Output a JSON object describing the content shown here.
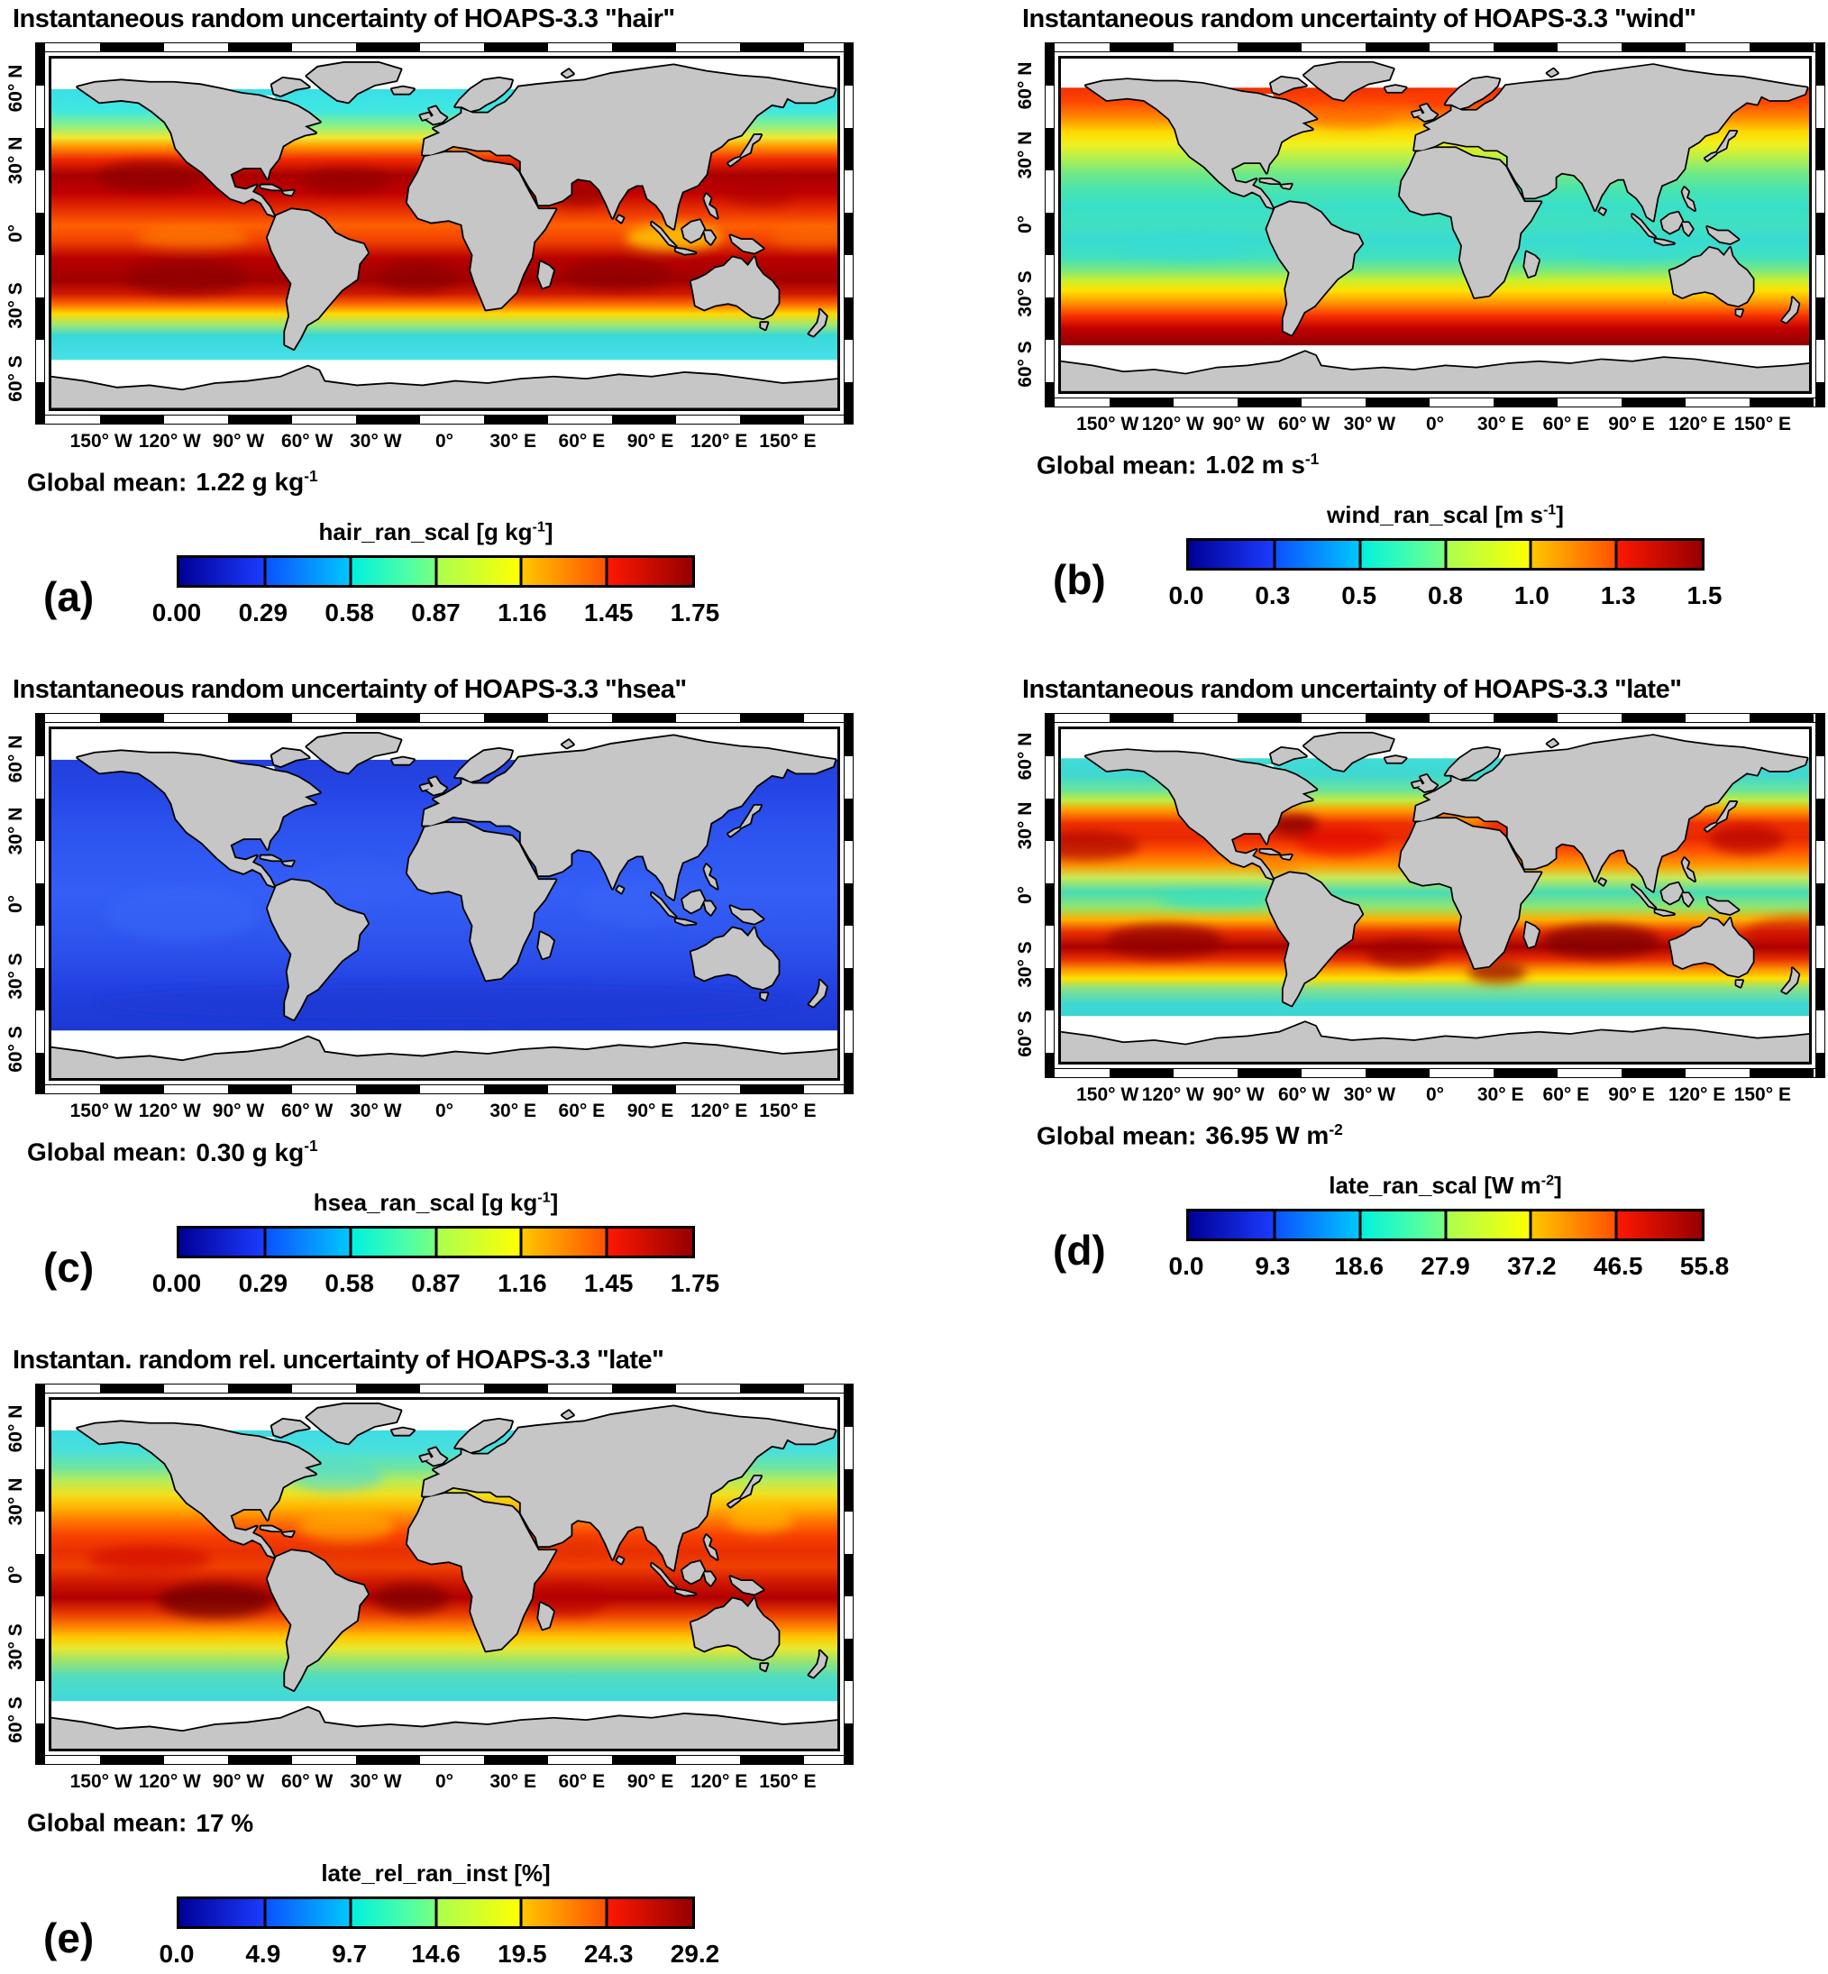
{
  "axes": {
    "lon_ticks": [
      "150° W",
      "120° W",
      "90° W",
      "60° W",
      "30° W",
      "0°",
      "30° E",
      "60° E",
      "90° E",
      "120° E",
      "150° E"
    ],
    "lat_ticks": [
      "60° N",
      "30° N",
      "0°",
      "30° S",
      "60° S"
    ]
  },
  "panels": [
    {
      "id": "a",
      "letter": "(a)",
      "title": "Instantaneous random uncertainty of HOAPS-3.3 \"hair\"",
      "global_mean": {
        "label": "Global mean:",
        "value": "1.22 g kg",
        "sup": "-1"
      },
      "colorbar": {
        "label_pre": "hair_ran_scal [g kg",
        "label_sup": "-1",
        "label_post": "]",
        "ticks": [
          "0.00",
          "0.29",
          "0.58",
          "0.87",
          "1.16",
          "1.45",
          "1.75"
        ]
      },
      "field": {
        "bands": [
          [
            65,
            "#38dfe8"
          ],
          [
            55,
            "#40e8e0"
          ],
          [
            48,
            "#90f080"
          ],
          [
            43,
            "#f0e830"
          ],
          [
            39,
            "#ff9800"
          ],
          [
            33,
            "#f02800"
          ],
          [
            26,
            "#a80000"
          ],
          [
            18,
            "#c00000"
          ],
          [
            10,
            "#e83000"
          ],
          [
            3,
            "#ff6000"
          ],
          [
            -4,
            "#f04000"
          ],
          [
            -12,
            "#b80000"
          ],
          [
            -22,
            "#a00000"
          ],
          [
            -28,
            "#d01800"
          ],
          [
            -33,
            "#ff7000"
          ],
          [
            -37,
            "#ffd800"
          ],
          [
            -42,
            "#a0e870"
          ],
          [
            -47,
            "#38d8d8"
          ],
          [
            -58,
            "#48e0e8"
          ]
        ],
        "blobs": [
          [
            -135,
            26,
            24,
            7,
            "#8c0000",
            0.7
          ],
          [
            -45,
            24,
            20,
            6,
            "#900000",
            0.6
          ],
          [
            62,
            17,
            14,
            5,
            "#900000",
            0.55
          ],
          [
            145,
            18,
            15,
            6,
            "#a80000",
            0.45
          ],
          [
            -118,
            -20,
            28,
            8,
            "#8c0000",
            0.7
          ],
          [
            -12,
            -20,
            18,
            7,
            "#8c0000",
            0.65
          ],
          [
            80,
            -19,
            24,
            7,
            "#8c0000",
            0.65
          ],
          [
            105,
            -2,
            22,
            6,
            "#ffd800",
            0.75
          ],
          [
            -115,
            -2,
            26,
            5,
            "#ff9800",
            0.45
          ],
          [
            170,
            -2,
            20,
            5,
            "#ff8000",
            0.4
          ]
        ]
      }
    },
    {
      "id": "b",
      "letter": "(b)",
      "title": "Instantaneous random uncertainty of HOAPS-3.3 \"wind\"",
      "global_mean": {
        "label": "Global mean:",
        "value": "1.02 m s",
        "sup": "-1"
      },
      "colorbar": {
        "label_pre": "wind_ran_scal [m s",
        "label_sup": "-1",
        "label_post": "]",
        "ticks": [
          "0.0",
          "0.3",
          "0.5",
          "0.8",
          "1.0",
          "1.3",
          "1.5"
        ]
      },
      "field": {
        "bands": [
          [
            65,
            "#f03000"
          ],
          [
            58,
            "#ff4800"
          ],
          [
            50,
            "#ff9000"
          ],
          [
            44,
            "#ffd800"
          ],
          [
            38,
            "#f0f020"
          ],
          [
            31,
            "#b0f050"
          ],
          [
            24,
            "#70e888"
          ],
          [
            16,
            "#48e4b0"
          ],
          [
            8,
            "#38e0c8"
          ],
          [
            0,
            "#40e0c0"
          ],
          [
            -8,
            "#38dcd0"
          ],
          [
            -16,
            "#40e0c0"
          ],
          [
            -22,
            "#78e880"
          ],
          [
            -27,
            "#c8f030"
          ],
          [
            -32,
            "#ffe000"
          ],
          [
            -38,
            "#ff9000"
          ],
          [
            -44,
            "#f83000"
          ],
          [
            -50,
            "#c00000"
          ],
          [
            -58,
            "#900000"
          ]
        ],
        "blobs": [
          [
            5,
            60,
            14,
            4,
            "#ff3800",
            0.75
          ],
          [
            15,
            36,
            11,
            2.5,
            "#d8e820",
            0.85
          ],
          [
            -40,
            52,
            20,
            6,
            "#ff5800",
            0.4
          ],
          [
            95,
            -12,
            25,
            6,
            "#38dcd8",
            0.5
          ],
          [
            -120,
            -10,
            30,
            7,
            "#38dcd8",
            0.45
          ]
        ]
      }
    },
    {
      "id": "c",
      "letter": "(c)",
      "title": "Instantaneous random uncertainty of HOAPS-3.3 \"hsea\"",
      "global_mean": {
        "label": "Global mean:",
        "value": "0.30 g kg",
        "sup": "-1"
      },
      "colorbar": {
        "label_pre": "hsea_ran_scal [g kg",
        "label_sup": "-1",
        "label_post": "]",
        "ticks": [
          "0.00",
          "0.29",
          "0.58",
          "0.87",
          "1.16",
          "1.45",
          "1.75"
        ]
      },
      "field": {
        "bands": [
          [
            65,
            "#2240dc"
          ],
          [
            50,
            "#2546e6"
          ],
          [
            35,
            "#2c52ee"
          ],
          [
            20,
            "#3058f2"
          ],
          [
            5,
            "#345ef6"
          ],
          [
            -10,
            "#3058f0"
          ],
          [
            -25,
            "#2a4eea"
          ],
          [
            -40,
            "#2240e0"
          ],
          [
            -58,
            "#1c38d4"
          ]
        ],
        "blobs": [
          [
            -120,
            -5,
            35,
            12,
            "#3a6af8",
            0.5
          ],
          [
            90,
            0,
            28,
            10,
            "#3a66f6",
            0.45
          ],
          [
            -40,
            10,
            25,
            10,
            "#3660f4",
            0.4
          ],
          [
            0,
            -45,
            160,
            8,
            "#1830cc",
            0.35
          ]
        ]
      }
    },
    {
      "id": "d",
      "letter": "(d)",
      "title": "Instantaneous random uncertainty of HOAPS-3.3 \"late\"",
      "global_mean": {
        "label": "Global mean:",
        "value": "36.95 W m",
        "sup": "-2"
      },
      "colorbar": {
        "label_pre": "late_ran_scal [W m",
        "label_sup": "-2",
        "label_post": "]",
        "ticks": [
          "0.0",
          "9.3",
          "18.6",
          "27.9",
          "37.2",
          "46.5",
          "55.8"
        ]
      },
      "field": {
        "bands": [
          [
            65,
            "#40dcd8"
          ],
          [
            57,
            "#40d8d0"
          ],
          [
            50,
            "#68e49c"
          ],
          [
            45,
            "#c0ec44"
          ],
          [
            40,
            "#ff9800"
          ],
          [
            34,
            "#f03000"
          ],
          [
            27,
            "#e82800"
          ],
          [
            21,
            "#ff5000"
          ],
          [
            14,
            "#ff9800"
          ],
          [
            8,
            "#c8e858"
          ],
          [
            1,
            "#48dcb4"
          ],
          [
            -6,
            "#90e470"
          ],
          [
            -12,
            "#ffb000"
          ],
          [
            -18,
            "#e83000"
          ],
          [
            -25,
            "#a80000"
          ],
          [
            -31,
            "#e83000"
          ],
          [
            -36,
            "#ff9800"
          ],
          [
            -40,
            "#ffe000"
          ],
          [
            -45,
            "#88e088"
          ],
          [
            -52,
            "#40d8d0"
          ],
          [
            -58,
            "#38d4d4"
          ]
        ],
        "blobs": [
          [
            -68,
            34,
            12,
            5,
            "#8c0000",
            0.85
          ],
          [
            -45,
            26,
            22,
            7,
            "#e00000",
            0.55
          ],
          [
            -168,
            24,
            26,
            7,
            "#a00000",
            0.6
          ],
          [
            150,
            27,
            18,
            7,
            "#b00000",
            0.65
          ],
          [
            175,
            -18,
            25,
            8,
            "#c00000",
            0.5
          ],
          [
            -105,
            -2,
            28,
            4,
            "#38e0c0",
            0.85
          ],
          [
            -75,
            14,
            10,
            4,
            "#ff8000",
            0.6
          ],
          [
            15,
            36,
            11,
            2.5,
            "#ffc000",
            0.85
          ],
          [
            80,
            -22,
            28,
            8,
            "#800000",
            0.75
          ],
          [
            -130,
            -22,
            28,
            8,
            "#8c0000",
            0.7
          ],
          [
            -15,
            -28,
            18,
            7,
            "#980000",
            0.6
          ],
          [
            30,
            -37,
            14,
            5,
            "#8c0000",
            0.7
          ]
        ]
      }
    },
    {
      "id": "e",
      "letter": "(e)",
      "title": "Instantan. random rel. uncertainty of HOAPS-3.3 \"late\"",
      "global_mean": {
        "label": "Global mean:",
        "value": "17 %",
        "sup": ""
      },
      "colorbar": {
        "label_pre": "late_rel_ran_inst [%]",
        "label_sup": "",
        "label_post": "",
        "ticks": [
          "0.0",
          "4.9",
          "9.7",
          "14.6",
          "19.5",
          "24.3",
          "29.2"
        ]
      },
      "field": {
        "bands": [
          [
            65,
            "#40dce4"
          ],
          [
            56,
            "#48e0dc"
          ],
          [
            48,
            "#70e4a0"
          ],
          [
            42,
            "#b8ec58"
          ],
          [
            36,
            "#f0e020"
          ],
          [
            30,
            "#ffb400"
          ],
          [
            24,
            "#ff7800"
          ],
          [
            17,
            "#f84000"
          ],
          [
            10,
            "#e83000"
          ],
          [
            3,
            "#f04000"
          ],
          [
            -4,
            "#d01800"
          ],
          [
            -11,
            "#b00000"
          ],
          [
            -18,
            "#e83800"
          ],
          [
            -24,
            "#ff8000"
          ],
          [
            -29,
            "#ffc800"
          ],
          [
            -34,
            "#e8e830"
          ],
          [
            -40,
            "#98e470"
          ],
          [
            -47,
            "#50dcc0"
          ],
          [
            -58,
            "#40d8dc"
          ]
        ],
        "blobs": [
          [
            -105,
            -12,
            26,
            8,
            "#700000",
            0.75
          ],
          [
            -15,
            -11,
            17,
            7,
            "#7c0000",
            0.7
          ],
          [
            57,
            -12,
            18,
            7,
            "#b80000",
            0.6
          ],
          [
            -135,
            7,
            28,
            6,
            "#cc0000",
            0.55
          ],
          [
            -55,
            5,
            20,
            5,
            "#e84000",
            0.4
          ],
          [
            62,
            13,
            11,
            4,
            "#e03000",
            0.5
          ],
          [
            -45,
            22,
            22,
            7,
            "#ffc800",
            0.5
          ],
          [
            -50,
            45,
            22,
            7,
            "#48d8e0",
            0.55
          ],
          [
            145,
            25,
            15,
            6,
            "#ffd000",
            0.5
          ]
        ]
      }
    }
  ],
  "chart_data": [
    {
      "type": "heatmap",
      "panel": "a",
      "title": "Instantaneous random uncertainty of HOAPS-3.3 \"hair\"",
      "variable": "hair_ran_scal",
      "unit": "g kg^-1",
      "colorbar_ticks": [
        0.0,
        0.29,
        0.58,
        0.87,
        1.16,
        1.45,
        1.75
      ],
      "colorbar_range": [
        0,
        1.75
      ],
      "global_mean": 1.22,
      "lon_ticks_deg": [
        -150,
        -120,
        -90,
        -60,
        -30,
        0,
        30,
        60,
        90,
        120,
        150
      ],
      "lat_ticks_deg": [
        60,
        30,
        0,
        -30,
        -60
      ],
      "colormap": "rainbow blue-to-dark-red",
      "data_lat_extent": [
        -58,
        65
      ],
      "pattern": "zonal: cyan (<0.6) poleward of 45°, yellow/orange ~40°, dark red maxima (~1.5-1.75) in subtropics 10-30° N/S, slightly lower orange at equator with yellow patch near maritime continent"
    },
    {
      "type": "heatmap",
      "panel": "b",
      "title": "Instantaneous random uncertainty of HOAPS-3.3 \"wind\"",
      "variable": "wind_ran_scal",
      "unit": "m s^-1",
      "colorbar_ticks": [
        0.0,
        0.3,
        0.5,
        0.8,
        1.0,
        1.3,
        1.5
      ],
      "colorbar_range": [
        0,
        1.5
      ],
      "global_mean": 1.02,
      "lon_ticks_deg": [
        -150,
        -120,
        -90,
        -60,
        -30,
        0,
        30,
        60,
        90,
        120,
        150
      ],
      "lat_ticks_deg": [
        60,
        30,
        0,
        -30,
        -60
      ],
      "colormap": "rainbow blue-to-dark-red",
      "data_lat_extent": [
        -58,
        66
      ],
      "pattern": "zonal: red/orange (>1.3) at high latitudes both hemispheres, yellow ~35-45°, green-cyan minimum (~0.5-0.7) in tropics 20°N-20°S, dark red maxima in Southern Ocean 45-58°S"
    },
    {
      "type": "heatmap",
      "panel": "c",
      "title": "Instantaneous random uncertainty of HOAPS-3.3 \"hsea\"",
      "variable": "hsea_ran_scal",
      "unit": "g kg^-1",
      "colorbar_ticks": [
        0.0,
        0.29,
        0.58,
        0.87,
        1.16,
        1.45,
        1.75
      ],
      "colorbar_range": [
        0,
        1.75
      ],
      "global_mean": 0.3,
      "lon_ticks_deg": [
        -150,
        -120,
        -90,
        -60,
        -30,
        0,
        30,
        60,
        90,
        120,
        150
      ],
      "lat_ticks_deg": [
        60,
        30,
        0,
        -30,
        -60
      ],
      "colormap": "rainbow blue-to-dark-red",
      "data_lat_extent": [
        -58,
        65
      ],
      "pattern": "nearly uniform dark-to-medium blue ocean (~0.2-0.4) everywhere, slightly brighter blue in tropics"
    },
    {
      "type": "heatmap",
      "panel": "d",
      "title": "Instantaneous random uncertainty of HOAPS-3.3 \"late\"",
      "variable": "late_ran_scal",
      "unit": "W m^-2",
      "colorbar_ticks": [
        0.0,
        9.3,
        18.6,
        27.9,
        37.2,
        46.5,
        55.8
      ],
      "colorbar_range": [
        0,
        55.8
      ],
      "global_mean": 36.95,
      "lon_ticks_deg": [
        -150,
        -120,
        -90,
        -60,
        -30,
        0,
        30,
        60,
        90,
        120,
        150
      ],
      "lat_ticks_deg": [
        60,
        30,
        0,
        -30,
        -60
      ],
      "colormap": "rainbow blue-to-dark-red",
      "data_lat_extent": [
        -58,
        65
      ],
      "pattern": "cyan at high latitudes and eastern equatorial Pacific; dark red maxima (>46) in subtropical gyres 15-35° N/S incl. Gulf Stream, Kuroshio, south Indian Ocean and Agulhas; green-yellow transition ~40-45°"
    },
    {
      "type": "heatmap",
      "panel": "e",
      "title": "Instantan. random rel. uncertainty of HOAPS-3.3 \"late\"",
      "variable": "late_rel_ran_inst",
      "unit": "%",
      "colorbar_ticks": [
        0.0,
        4.9,
        9.7,
        14.6,
        19.5,
        24.3,
        29.2
      ],
      "colorbar_range": [
        0,
        29.2
      ],
      "global_mean": 17,
      "lon_ticks_deg": [
        -150,
        -120,
        -90,
        -60,
        -30,
        0,
        30,
        60,
        90,
        120,
        150
      ],
      "lat_ticks_deg": [
        60,
        30,
        0,
        -30,
        -60
      ],
      "colormap": "rainbow blue-to-dark-red",
      "data_lat_extent": [
        -58,
        65
      ],
      "pattern": "cyan-green (<10%) poleward of 45°; yellow/orange ~25-35°; red to dark red maxima (>24%) in tropics 15°N-20°S, darkest in SE Pacific and South Atlantic; yellow ~30°S"
    }
  ]
}
